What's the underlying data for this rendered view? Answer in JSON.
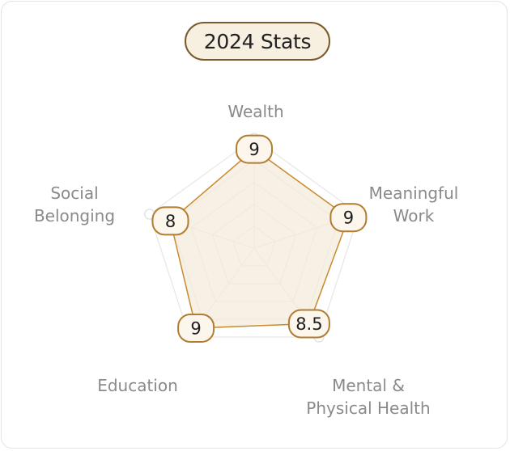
{
  "chart_data": {
    "type": "radar",
    "title": "2024 Stats",
    "max": 10,
    "rings": 5,
    "axes": [
      {
        "label_lines": [
          "Wealth"
        ],
        "value": 9,
        "display": "9"
      },
      {
        "label_lines": [
          "Meaningful",
          "Work"
        ],
        "value": 9,
        "display": "9"
      },
      {
        "label_lines": [
          "Mental &",
          "Physical Health"
        ],
        "value": 8.5,
        "display": "8.5"
      },
      {
        "label_lines": [
          "Education"
        ],
        "value": 9,
        "display": "9"
      },
      {
        "label_lines": [
          "Social",
          "Belonging"
        ],
        "value": 8,
        "display": "8"
      }
    ],
    "colors": {
      "series_line": "#c98a2e",
      "series_fill": "#f4ebdb",
      "grid": "#e8e8e8",
      "pill_border": "#b07d32",
      "pill_fill": "#fdf6ec"
    }
  }
}
